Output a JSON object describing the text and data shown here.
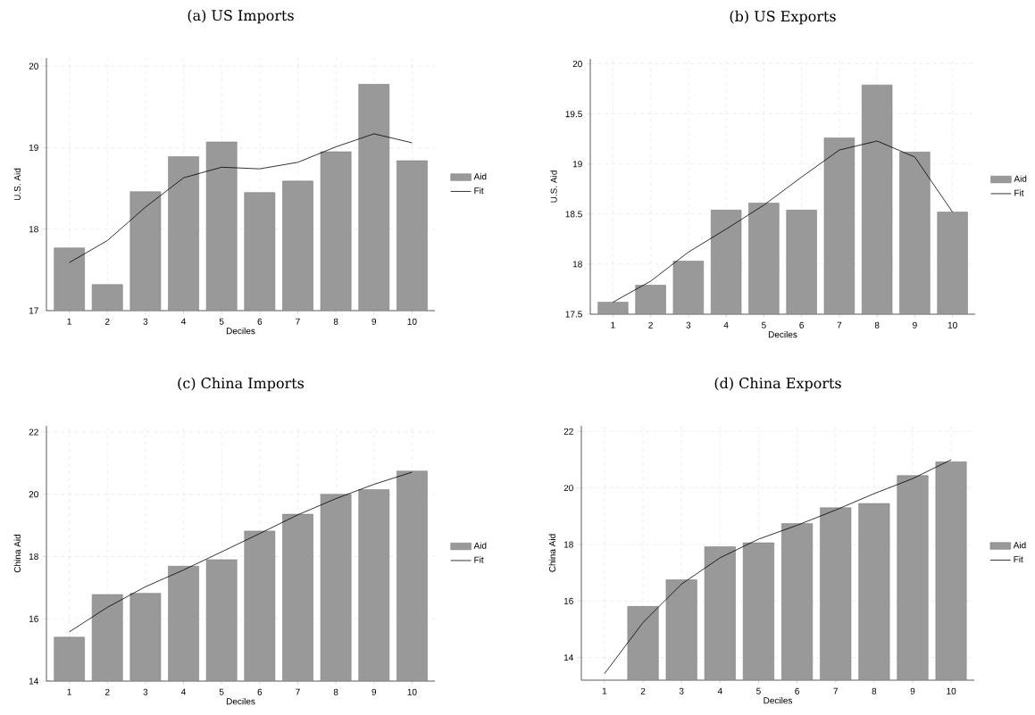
{
  "chart_data": [
    {
      "type": "bar",
      "title": "(a) US Imports",
      "xlabel": "Deciles",
      "ylabel": "U.S. Aid",
      "categories": [
        "1",
        "2",
        "3",
        "4",
        "5",
        "6",
        "7",
        "8",
        "9",
        "10"
      ],
      "series": [
        {
          "name": "Aid",
          "color": "#999999",
          "values": [
            17.77,
            17.32,
            18.46,
            18.89,
            19.07,
            18.45,
            18.59,
            18.95,
            19.78,
            18.84
          ]
        },
        {
          "name": "Fit",
          "type": "line",
          "color": "#000000",
          "values": [
            17.59,
            17.86,
            18.27,
            18.63,
            18.76,
            18.74,
            18.82,
            19.01,
            19.17,
            19.06
          ]
        }
      ],
      "ylim": [
        17,
        20.1
      ],
      "yticks": [
        17,
        18,
        19,
        20
      ],
      "grid": true,
      "legend": "right",
      "marker": "none",
      "line_style": "solid"
    },
    {
      "type": "bar",
      "title": "(b) US Exports",
      "xlabel": "Deciles",
      "ylabel": "U.S. Aid",
      "categories": [
        "1",
        "2",
        "3",
        "4",
        "5",
        "6",
        "7",
        "8",
        "9",
        "10"
      ],
      "series": [
        {
          "name": "Aid",
          "color": "#999999",
          "values": [
            17.62,
            17.79,
            18.03,
            18.54,
            18.61,
            18.54,
            19.26,
            19.79,
            19.12,
            18.52
          ]
        },
        {
          "name": "Fit",
          "type": "line",
          "color": "#000000",
          "values": [
            17.62,
            17.83,
            18.12,
            18.35,
            18.59,
            18.87,
            19.14,
            19.23,
            19.07,
            18.52
          ]
        }
      ],
      "ylim": [
        17.5,
        20.05
      ],
      "yticks": [
        17.5,
        18,
        18.5,
        19,
        19.5,
        20
      ],
      "grid": true,
      "legend": "right",
      "marker": "none",
      "line_style": "solid"
    },
    {
      "type": "bar",
      "title": "(c) China Imports",
      "xlabel": "Deciles",
      "ylabel": "China Aid",
      "categories": [
        "1",
        "2",
        "3",
        "4",
        "5",
        "6",
        "7",
        "8",
        "9",
        "10"
      ],
      "series": [
        {
          "name": "Aid",
          "color": "#999999",
          "values": [
            15.41,
            16.78,
            16.82,
            17.69,
            17.9,
            18.82,
            19.36,
            20.0,
            20.15,
            20.75
          ]
        },
        {
          "name": "Fit",
          "type": "line",
          "color": "#000000",
          "values": [
            15.58,
            16.37,
            17.03,
            17.57,
            18.15,
            18.74,
            19.34,
            19.86,
            20.32,
            20.71
          ]
        }
      ],
      "ylim": [
        14,
        22.2
      ],
      "yticks": [
        14,
        16,
        18,
        20,
        22
      ],
      "grid": true,
      "legend": "right",
      "marker": "none",
      "line_style": "solid"
    },
    {
      "type": "bar",
      "title": "(d) China Exports",
      "xlabel": "Deciles",
      "ylabel": "China Aid",
      "categories": [
        "1",
        "2",
        "3",
        "4",
        "5",
        "6",
        "7",
        "8",
        "9",
        "10"
      ],
      "series": [
        {
          "name": "Aid",
          "color": "#999999",
          "values": [
            null,
            15.81,
            16.75,
            17.92,
            18.06,
            18.74,
            19.3,
            19.45,
            20.44,
            20.93
          ]
        },
        {
          "name": "Fit",
          "type": "line",
          "color": "#000000",
          "values": [
            13.43,
            15.24,
            16.6,
            17.53,
            18.19,
            18.68,
            19.22,
            19.8,
            20.33,
            21.0
          ]
        }
      ],
      "ylim": [
        13.2,
        22.2
      ],
      "yticks": [
        14,
        16,
        18,
        20,
        22
      ],
      "grid": true,
      "legend": "right",
      "marker": "none",
      "line_style": "solid"
    }
  ]
}
